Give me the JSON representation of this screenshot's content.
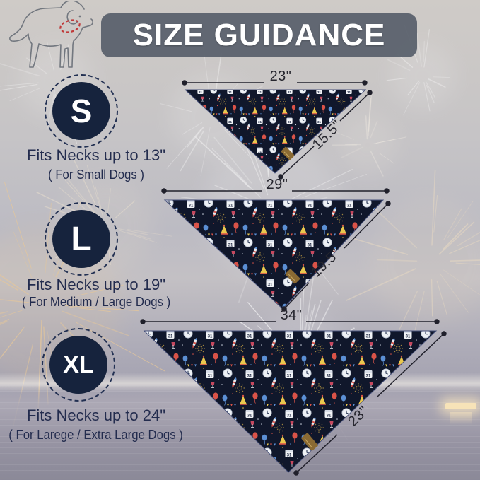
{
  "title": "SIZE GUIDANCE",
  "sizes": [
    {
      "label": "S",
      "fits": "Fits Necks up to 13\"",
      "audience": "( For Small Dogs )",
      "top_measure": "23\"",
      "side_measure": "15.5\""
    },
    {
      "label": "L",
      "fits": "Fits Necks up to 19\"",
      "audience": "( For Medium / Large Dogs )",
      "top_measure": "29\"",
      "side_measure": "19.5\""
    },
    {
      "label": "XL",
      "fits": "Fits Necks up to 24\"",
      "audience": "( For Larege / Extra Large Dogs )",
      "top_measure": "34\"",
      "side_measure": "23\""
    }
  ],
  "icons": {
    "dog": "dog-outline-with-red-dashed-collar-icon",
    "bandana_print": "new-years-fireworks-party-pattern"
  },
  "colors": {
    "banner_bg": "#5a6370",
    "size_circle": "#16233d",
    "text_navy": "#232c4e",
    "fabric_navy": "#10172b",
    "collar_red": "#c03a3a",
    "accent_red": "#d95348",
    "accent_blue": "#5b8fd4",
    "accent_gold": "#a98c3f",
    "tag_brown": "#8a6a33"
  }
}
